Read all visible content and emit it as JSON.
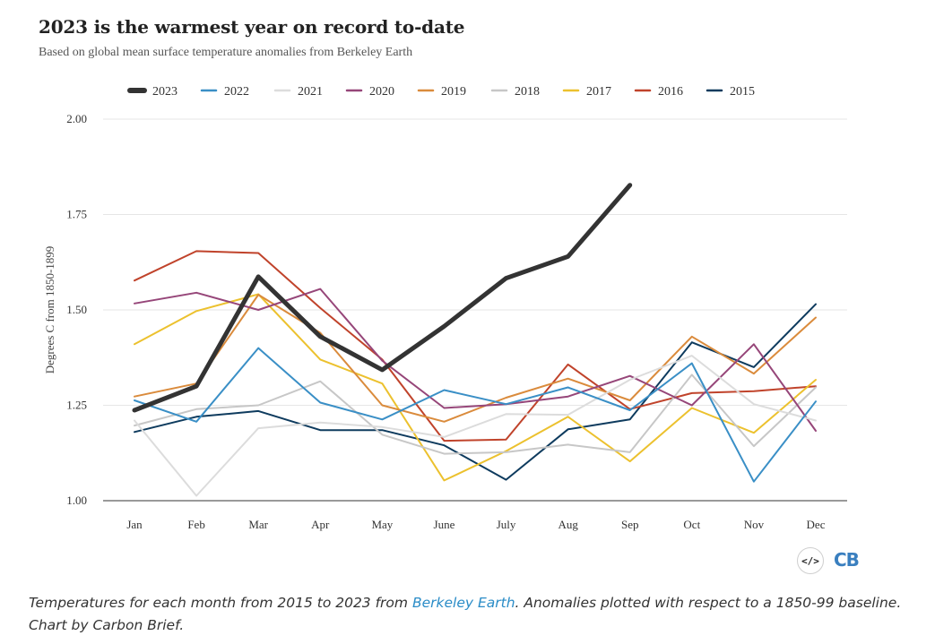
{
  "title": "2023 is the warmest year on record to-date",
  "subtitle": "Based on global mean surface temperature anomalies from Berkeley Earth",
  "caption": {
    "before": "Temperatures for each month from 2015 to 2023 from ",
    "link": "Berkeley Earth",
    "after": ". Anomalies plotted with respect to a 1850-99 baseline. Chart by Carbon Brief."
  },
  "logo_text": "CB",
  "embed_icon": "code-embed-icon",
  "chart_data": {
    "type": "line",
    "title": "2023 is the warmest year on record to-date",
    "ylabel": "Degrees C from 1850-1899",
    "xlabel": "",
    "ylim": [
      1.0,
      2.0
    ],
    "yticks": [
      "1.00",
      "1.25",
      "1.50",
      "1.75",
      "2.00"
    ],
    "ytick_values": [
      1.0,
      1.25,
      1.5,
      1.75,
      2.0
    ],
    "categories": [
      "Jan",
      "Feb",
      "Mar",
      "Apr",
      "May",
      "June",
      "July",
      "Aug",
      "Sep",
      "Oct",
      "Nov",
      "Dec"
    ],
    "grid": "horizontal",
    "legend_position": "top",
    "series": [
      {
        "name": "2015",
        "color": "#0e3b5e",
        "width": 2,
        "values": [
          1.18,
          1.22,
          1.235,
          1.185,
          1.185,
          1.145,
          1.055,
          1.187,
          1.213,
          1.415,
          1.35,
          1.515
        ]
      },
      {
        "name": "2016",
        "color": "#c0432b",
        "width": 2,
        "values": [
          1.577,
          1.654,
          1.649,
          1.505,
          1.37,
          1.157,
          1.16,
          1.357,
          1.24,
          1.282,
          1.287,
          1.3
        ]
      },
      {
        "name": "2017",
        "color": "#ecc12e",
        "width": 2,
        "values": [
          1.41,
          1.497,
          1.541,
          1.37,
          1.307,
          1.053,
          1.13,
          1.22,
          1.103,
          1.243,
          1.178,
          1.317
        ]
      },
      {
        "name": "2018",
        "color": "#c7c7c7",
        "width": 2,
        "values": [
          1.197,
          1.24,
          1.25,
          1.313,
          1.173,
          1.123,
          1.127,
          1.147,
          1.127,
          1.33,
          1.143,
          1.297
        ]
      },
      {
        "name": "2019",
        "color": "#da8b3c",
        "width": 2,
        "values": [
          1.273,
          1.307,
          1.54,
          1.44,
          1.25,
          1.207,
          1.27,
          1.32,
          1.263,
          1.43,
          1.333,
          1.48
        ]
      },
      {
        "name": "2020",
        "color": "#964679",
        "width": 2,
        "values": [
          1.517,
          1.545,
          1.5,
          1.555,
          1.367,
          1.243,
          1.253,
          1.273,
          1.327,
          1.25,
          1.41,
          1.183
        ]
      },
      {
        "name": "2021",
        "color": "#dcdcdc",
        "width": 2,
        "values": [
          1.21,
          1.013,
          1.19,
          1.205,
          1.193,
          1.167,
          1.227,
          1.225,
          1.317,
          1.38,
          1.253,
          1.21
        ]
      },
      {
        "name": "2022",
        "color": "#3a8fc6",
        "width": 2,
        "values": [
          1.263,
          1.207,
          1.4,
          1.257,
          1.213,
          1.29,
          1.253,
          1.297,
          1.237,
          1.36,
          1.05,
          1.26
        ]
      },
      {
        "name": "2023",
        "color": "#333333",
        "width": 5,
        "values": [
          1.237,
          1.3,
          1.587,
          1.43,
          1.343,
          1.457,
          1.583,
          1.64,
          1.827,
          null,
          null,
          null
        ]
      }
    ],
    "legend_order": [
      "2023",
      "2022",
      "2021",
      "2020",
      "2019",
      "2018",
      "2017",
      "2016",
      "2015"
    ]
  }
}
